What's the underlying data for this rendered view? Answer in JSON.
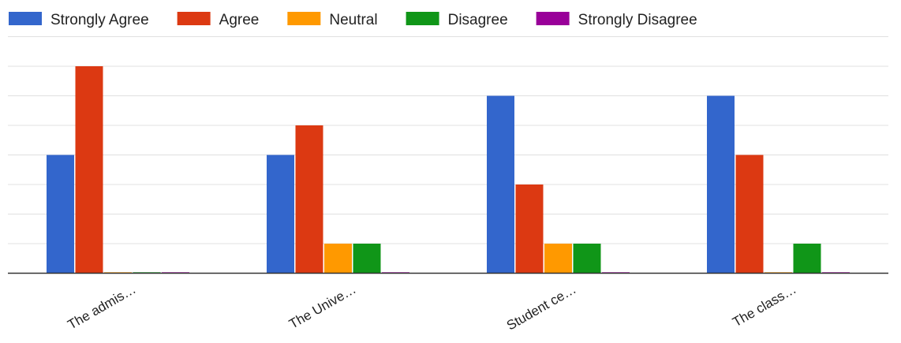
{
  "chart_data": {
    "type": "bar",
    "categories": [
      "The admis…",
      "The Unive…",
      "Student ce…",
      "The class…"
    ],
    "series": [
      {
        "name": "Strongly Agree",
        "color": "#3366cc",
        "values": [
          4,
          4,
          6,
          6
        ]
      },
      {
        "name": "Agree",
        "color": "#dc3912",
        "values": [
          7,
          5,
          3,
          4
        ]
      },
      {
        "name": "Neutral",
        "color": "#ff9900",
        "values": [
          0,
          1,
          1,
          0
        ]
      },
      {
        "name": "Disagree",
        "color": "#109618",
        "values": [
          0,
          1,
          1,
          1
        ]
      },
      {
        "name": "Strongly Disagree",
        "color": "#990099",
        "values": [
          0,
          0,
          0,
          0
        ]
      }
    ],
    "ylim": [
      0,
      8
    ],
    "grid": true,
    "legend_position": "top",
    "title": "",
    "xlabel": "",
    "ylabel": ""
  }
}
